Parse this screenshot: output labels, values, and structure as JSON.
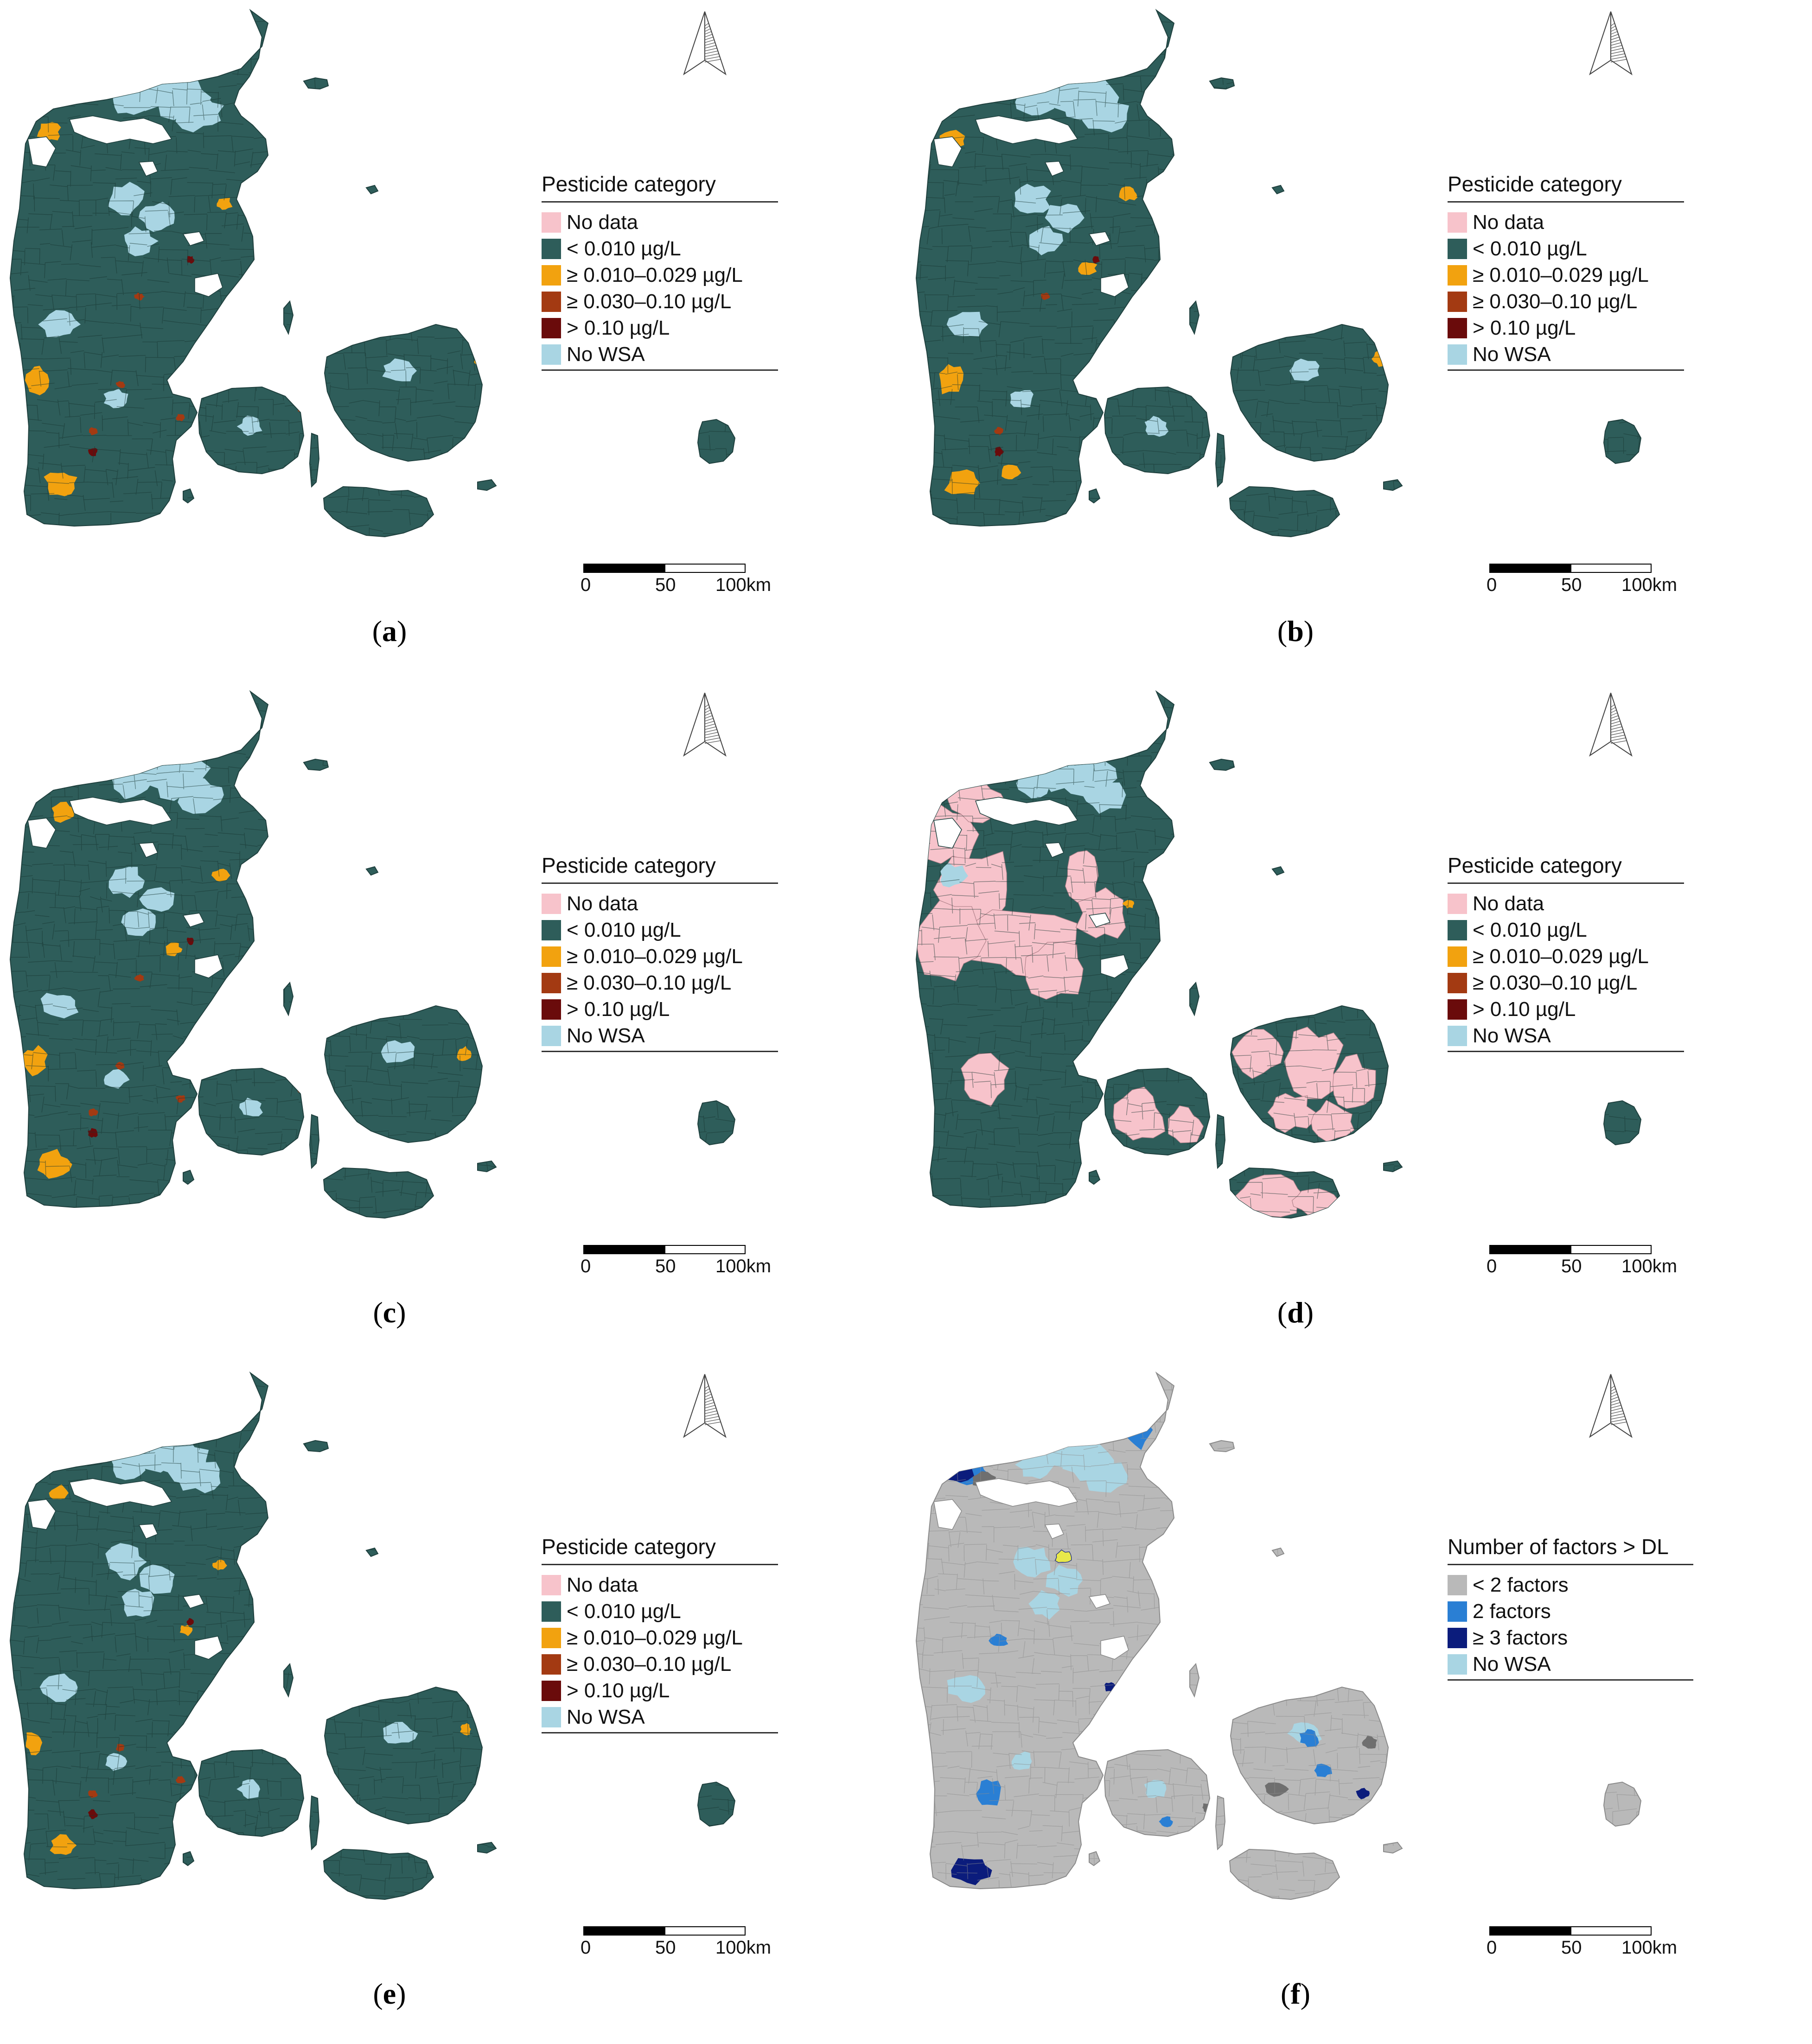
{
  "colors": {
    "no_data": "#f7c3cb",
    "lt_0010": "#2e5d5a",
    "c0010_0029": "#f2a20f",
    "c0030_010": "#a33a12",
    "gt_010": "#6a0b0b",
    "no_wsa": "#a9d5e3",
    "f_lt2": "#b9b9b9",
    "f_2": "#2a7fd4",
    "f_ge3": "#0b1c7c"
  },
  "pesticide_legend": {
    "title": "Pesticide category",
    "items": [
      {
        "label": "No data",
        "color": "#f7c3cb"
      },
      {
        "label": "< 0.010 µg/L",
        "color": "#2e5d5a"
      },
      {
        "label": "≥ 0.010–0.029 µg/L",
        "color": "#f2a20f"
      },
      {
        "label": "≥ 0.030–0.10 µg/L",
        "color": "#a33a12"
      },
      {
        "label": "> 0.10 µg/L",
        "color": "#6a0b0b"
      },
      {
        "label": "No WSA",
        "color": "#a9d5e3"
      }
    ]
  },
  "factors_legend": {
    "title": "Number of factors > DL",
    "items": [
      {
        "label": "< 2 factors",
        "color": "#b9b9b9"
      },
      {
        "label": "2 factors",
        "color": "#2a7fd4"
      },
      {
        "label": "≥ 3 factors",
        "color": "#0b1c7c"
      },
      {
        "label": "No WSA",
        "color": "#a9d5e3"
      }
    ]
  },
  "scale": {
    "labels": [
      "0",
      "50",
      "100km"
    ]
  },
  "panels": [
    {
      "id": "a",
      "letter": "a",
      "legend": "pesticide",
      "mode": "pesticide"
    },
    {
      "id": "b",
      "letter": "b",
      "legend": "pesticide",
      "mode": "pesticide"
    },
    {
      "id": "c",
      "letter": "c",
      "legend": "pesticide",
      "mode": "pesticide"
    },
    {
      "id": "d",
      "letter": "d",
      "legend": "pesticide",
      "mode": "nodata"
    },
    {
      "id": "e",
      "letter": "e",
      "legend": "pesticide",
      "mode": "pesticide"
    },
    {
      "id": "f",
      "letter": "f",
      "legend": "factors",
      "mode": "factors"
    }
  ]
}
